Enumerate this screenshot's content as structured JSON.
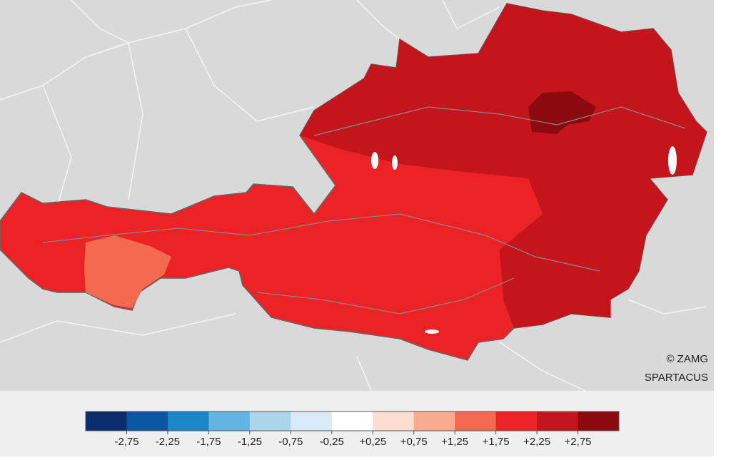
{
  "credit": {
    "line1": "© ZAMG",
    "line2": "SPARTACUS"
  },
  "legend": {
    "colors": [
      "#0a2d6e",
      "#0b56a4",
      "#1b86c8",
      "#62b5e1",
      "#acd5ec",
      "#d9eaf6",
      "#ffffff",
      "#fddcd1",
      "#f9ab90",
      "#f46a50",
      "#ec2227",
      "#c5151c",
      "#8c0a0f"
    ],
    "labels": [
      "-2,75",
      "-2,25",
      "-1,75",
      "-1,25",
      "-0,75",
      "-0,25",
      "+0,25",
      "+0,75",
      "+1,25",
      "+1,75",
      "+2,25",
      "+2,75"
    ]
  }
}
